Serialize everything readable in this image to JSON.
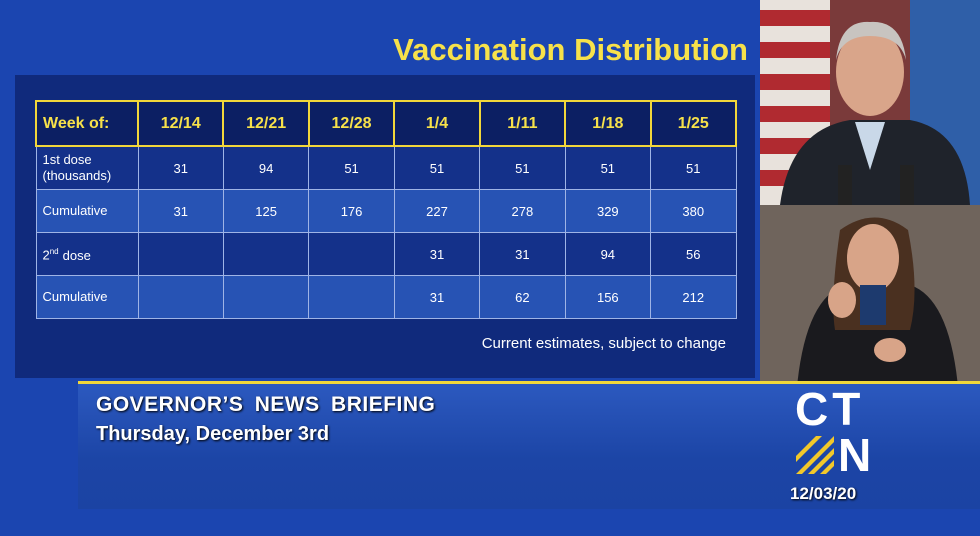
{
  "title": "Vaccination Distribution",
  "table": {
    "header": [
      "Week of:",
      "12/14",
      "12/21",
      "12/28",
      "1/4",
      "1/11",
      "1/18",
      "1/25"
    ],
    "rows": [
      {
        "label": "1st dose (thousands)",
        "cells": [
          31,
          94,
          51,
          51,
          51,
          51,
          51
        ]
      },
      {
        "label": "Cumulative",
        "cells": [
          31,
          125,
          176,
          227,
          278,
          329,
          380
        ]
      },
      {
        "label": [
          "2",
          "nd",
          "dose"
        ],
        "cells": [
          null,
          null,
          null,
          31,
          31,
          94,
          56
        ]
      },
      {
        "label": "Cumulative",
        "cells": [
          null,
          null,
          null,
          31,
          62,
          156,
          212
        ]
      }
    ]
  },
  "note": "Current estimates, subject to change",
  "lower_third": {
    "program": "GOVERNOR’S NEWS BRIEFING",
    "date": "Thursday, December 3rd"
  },
  "logo": {
    "top": "CT",
    "bottom": "N",
    "date": "12/03/20"
  }
}
